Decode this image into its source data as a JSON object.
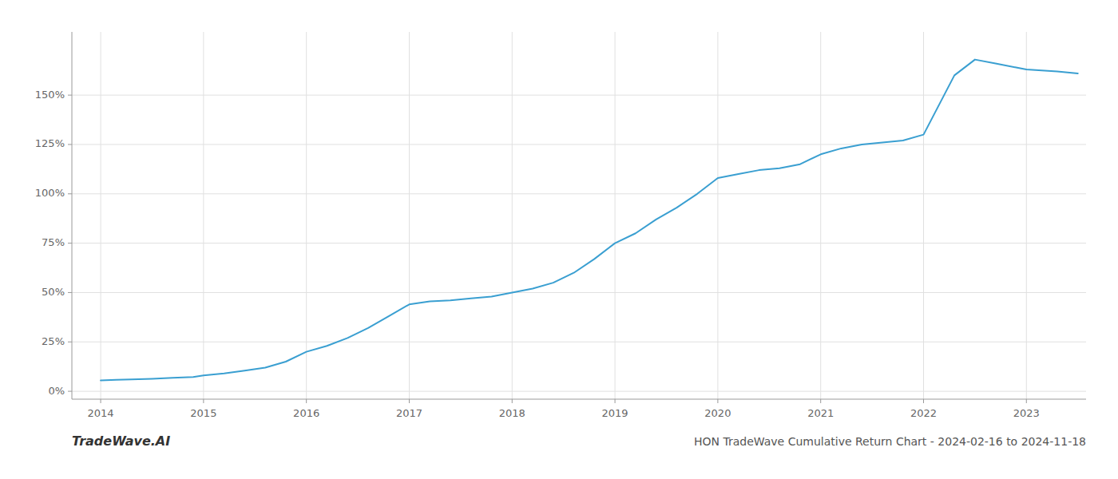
{
  "chart_data": {
    "type": "line",
    "title": "HON TradeWave Cumulative Return Chart - 2024-02-16 to 2024-11-18",
    "annotations": [
      "TradeWave.AI"
    ],
    "x": [
      2014.0,
      2014.15,
      2014.3,
      2014.5,
      2014.7,
      2014.9,
      2015.0,
      2015.2,
      2015.4,
      2015.6,
      2015.8,
      2016.0,
      2016.2,
      2016.4,
      2016.6,
      2016.8,
      2017.0,
      2017.2,
      2017.4,
      2017.6,
      2017.8,
      2018.0,
      2018.2,
      2018.4,
      2018.6,
      2018.8,
      2019.0,
      2019.2,
      2019.4,
      2019.6,
      2019.8,
      2020.0,
      2020.2,
      2020.4,
      2020.6,
      2020.8,
      2021.0,
      2021.2,
      2021.4,
      2021.6,
      2021.8,
      2022.0,
      2022.3,
      2022.5,
      2022.7,
      2022.9,
      2023.0,
      2023.3,
      2023.5
    ],
    "values": [
      0.055,
      0.058,
      0.06,
      0.063,
      0.068,
      0.072,
      0.08,
      0.09,
      0.105,
      0.12,
      0.15,
      0.2,
      0.23,
      0.27,
      0.32,
      0.38,
      0.44,
      0.455,
      0.46,
      0.47,
      0.48,
      0.5,
      0.52,
      0.55,
      0.6,
      0.67,
      0.75,
      0.8,
      0.87,
      0.93,
      1.0,
      1.08,
      1.1,
      1.12,
      1.13,
      1.15,
      1.2,
      1.23,
      1.25,
      1.26,
      1.27,
      1.3,
      1.6,
      1.68,
      1.66,
      1.64,
      1.63,
      1.62,
      1.61
    ],
    "color": "#3a9fd1",
    "xlim": [
      2013.72,
      2023.58
    ],
    "xticks": [
      2014,
      2015,
      2016,
      2017,
      2018,
      2019,
      2020,
      2021,
      2022,
      2023
    ],
    "ylim": [
      -0.04,
      1.82
    ],
    "yticks": [
      {
        "value": 0.0,
        "label": "0%"
      },
      {
        "value": 0.25,
        "label": "25%"
      },
      {
        "value": 0.5,
        "label": "50%"
      },
      {
        "value": 0.75,
        "label": "75%"
      },
      {
        "value": 1.0,
        "label": "100%"
      },
      {
        "value": 1.25,
        "label": "125%"
      },
      {
        "value": 1.5,
        "label": "150%"
      }
    ],
    "grid": true
  }
}
